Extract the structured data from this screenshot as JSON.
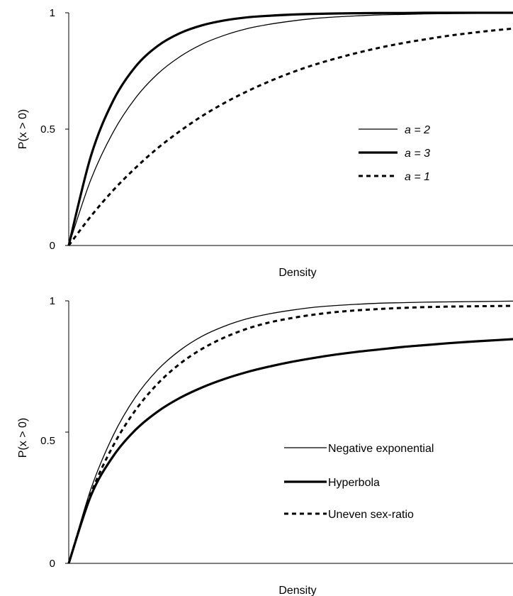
{
  "chart_data": [
    {
      "type": "line",
      "title": "",
      "xlabel": "Density",
      "ylabel": "P(x > 0)",
      "ylim": [
        0,
        1
      ],
      "xlim": [
        0,
        100
      ],
      "y_ticks": [
        "0",
        "0.5",
        "1"
      ],
      "grid": false,
      "legend_position": "center-right",
      "x": [
        0,
        5,
        10,
        15,
        20,
        25,
        30,
        35,
        40,
        45,
        50,
        55,
        60,
        65,
        70,
        75,
        80,
        85,
        90,
        95,
        100
      ],
      "series": [
        {
          "name": "a = 2",
          "style": "thin",
          "values": [
            0,
            0.284,
            0.487,
            0.633,
            0.737,
            0.811,
            0.865,
            0.903,
            0.931,
            0.95,
            0.964,
            0.975,
            0.982,
            0.987,
            0.991,
            0.993,
            0.995,
            0.996,
            0.997,
            0.998,
            0.999
          ]
        },
        {
          "name": "a = 3",
          "style": "thick",
          "values": [
            0,
            0.385,
            0.622,
            0.768,
            0.857,
            0.912,
            0.946,
            0.967,
            0.98,
            0.987,
            0.992,
            0.995,
            0.997,
            0.998,
            0.999,
            0.999,
            1.0,
            1.0,
            1.0,
            1.0,
            1.0
          ]
        },
        {
          "name": "a = 1",
          "style": "dashed",
          "values": [
            0,
            0.126,
            0.237,
            0.333,
            0.418,
            0.491,
            0.556,
            0.612,
            0.661,
            0.704,
            0.742,
            0.775,
            0.803,
            0.828,
            0.85,
            0.869,
            0.885,
            0.9,
            0.912,
            0.923,
            0.932
          ]
        }
      ],
      "legend": [
        {
          "label": "a = 2",
          "style": "thin"
        },
        {
          "label": "a = 3",
          "style": "thick"
        },
        {
          "label": "a = 1",
          "style": "dashed"
        }
      ]
    },
    {
      "type": "line",
      "title": "",
      "xlabel": "Density",
      "ylabel": "P(x > 0)",
      "ylim": [
        0,
        1
      ],
      "xlim": [
        0,
        100
      ],
      "y_ticks": [
        "0",
        "0.5",
        "1"
      ],
      "grid": false,
      "legend_position": "center-right",
      "x": [
        0,
        5,
        10,
        15,
        20,
        25,
        30,
        35,
        40,
        45,
        50,
        55,
        60,
        65,
        70,
        75,
        80,
        85,
        90,
        95,
        100
      ],
      "series": [
        {
          "name": "Negative exponential",
          "style": "thin",
          "values": [
            0,
            0.284,
            0.487,
            0.633,
            0.737,
            0.811,
            0.865,
            0.903,
            0.931,
            0.95,
            0.964,
            0.975,
            0.982,
            0.987,
            0.991,
            0.993,
            0.995,
            0.996,
            0.997,
            0.998,
            0.999
          ]
        },
        {
          "name": "Hyperbola",
          "style": "thick",
          "values": [
            0,
            0.258,
            0.408,
            0.508,
            0.578,
            0.63,
            0.67,
            0.702,
            0.728,
            0.749,
            0.767,
            0.782,
            0.795,
            0.806,
            0.815,
            0.824,
            0.831,
            0.838,
            0.844,
            0.849,
            0.854
          ]
        },
        {
          "name": "Uneven sex-ratio",
          "style": "dashed",
          "values": [
            0,
            0.265,
            0.448,
            0.583,
            0.684,
            0.76,
            0.817,
            0.86,
            0.893,
            0.917,
            0.934,
            0.947,
            0.957,
            0.964,
            0.969,
            0.973,
            0.976,
            0.978,
            0.979,
            0.98,
            0.981
          ]
        }
      ],
      "legend": [
        {
          "label": "Negative exponential",
          "style": "thin"
        },
        {
          "label": "Hyperbola",
          "style": "thick"
        },
        {
          "label": "Uneven sex-ratio",
          "style": "dashed"
        }
      ]
    }
  ]
}
